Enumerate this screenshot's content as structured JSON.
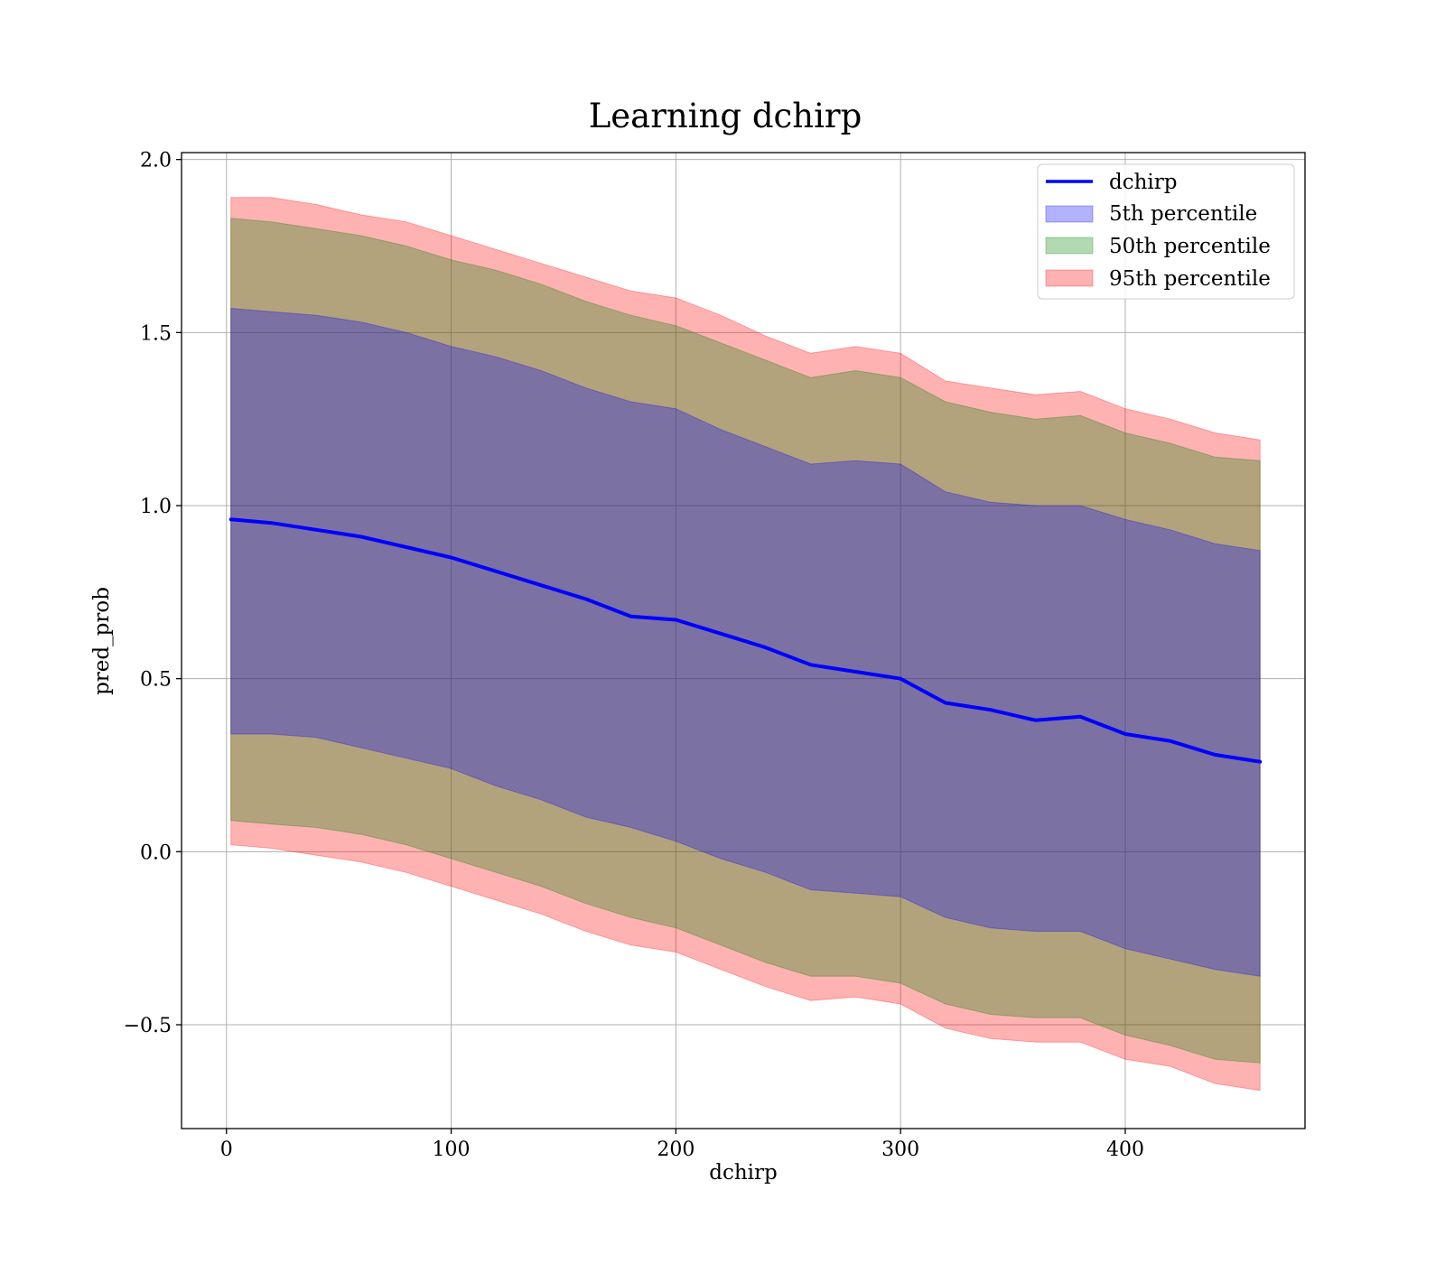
{
  "chart_data": {
    "type": "line",
    "title": "Learning dchirp",
    "xlabel": "dchirp",
    "ylabel": "pred_prob",
    "xlim": [
      -20,
      480
    ],
    "ylim": [
      -0.8,
      2.02
    ],
    "xticks": [
      0,
      100,
      200,
      300,
      400
    ],
    "xtick_labels": [
      "0",
      "100",
      "200",
      "300",
      "400"
    ],
    "yticks": [
      -0.5,
      0.0,
      0.5,
      1.0,
      1.5,
      2.0
    ],
    "ytick_labels": [
      "−0.5",
      "0.0",
      "0.5",
      "1.0",
      "1.5",
      "2.0"
    ],
    "grid": true,
    "legend_position": "top-right",
    "x": [
      2,
      20,
      40,
      60,
      80,
      100,
      120,
      140,
      160,
      180,
      200,
      220,
      240,
      260,
      280,
      300,
      320,
      340,
      360,
      380,
      400,
      420,
      440,
      460
    ],
    "series": [
      {
        "name": "dchirp",
        "kind": "line",
        "color": "#0000ff",
        "values": [
          0.96,
          0.95,
          0.93,
          0.91,
          0.88,
          0.85,
          0.81,
          0.77,
          0.73,
          0.68,
          0.67,
          0.63,
          0.59,
          0.54,
          0.52,
          0.5,
          0.43,
          0.41,
          0.38,
          0.39,
          0.34,
          0.32,
          0.28,
          0.26
        ]
      },
      {
        "name": "5th percentile",
        "kind": "band",
        "color": "#0000ff",
        "upper": [
          1.57,
          1.56,
          1.55,
          1.53,
          1.5,
          1.46,
          1.43,
          1.39,
          1.34,
          1.3,
          1.28,
          1.22,
          1.17,
          1.12,
          1.13,
          1.12,
          1.04,
          1.01,
          1.0,
          1.0,
          0.96,
          0.93,
          0.89,
          0.87
        ],
        "lower": [
          0.34,
          0.34,
          0.33,
          0.3,
          0.27,
          0.24,
          0.19,
          0.15,
          0.1,
          0.07,
          0.03,
          -0.02,
          -0.06,
          -0.11,
          -0.12,
          -0.13,
          -0.19,
          -0.22,
          -0.23,
          -0.23,
          -0.28,
          -0.31,
          -0.34,
          -0.36
        ]
      },
      {
        "name": "50th percentile",
        "kind": "band",
        "color": "#008000",
        "upper": [
          1.83,
          1.82,
          1.8,
          1.78,
          1.75,
          1.71,
          1.68,
          1.64,
          1.59,
          1.55,
          1.52,
          1.47,
          1.42,
          1.37,
          1.39,
          1.37,
          1.3,
          1.27,
          1.25,
          1.26,
          1.21,
          1.18,
          1.14,
          1.13
        ],
        "lower": [
          0.09,
          0.08,
          0.07,
          0.05,
          0.02,
          -0.02,
          -0.06,
          -0.1,
          -0.15,
          -0.19,
          -0.22,
          -0.27,
          -0.32,
          -0.36,
          -0.36,
          -0.38,
          -0.44,
          -0.47,
          -0.48,
          -0.48,
          -0.53,
          -0.56,
          -0.6,
          -0.61
        ]
      },
      {
        "name": "95th percentile",
        "kind": "band",
        "color": "#ff0000",
        "upper": [
          1.89,
          1.89,
          1.87,
          1.84,
          1.82,
          1.78,
          1.74,
          1.7,
          1.66,
          1.62,
          1.6,
          1.55,
          1.49,
          1.44,
          1.46,
          1.44,
          1.36,
          1.34,
          1.32,
          1.33,
          1.28,
          1.25,
          1.21,
          1.19
        ],
        "lower": [
          0.02,
          0.01,
          -0.01,
          -0.03,
          -0.06,
          -0.1,
          -0.14,
          -0.18,
          -0.23,
          -0.27,
          -0.29,
          -0.34,
          -0.39,
          -0.43,
          -0.42,
          -0.44,
          -0.51,
          -0.54,
          -0.55,
          -0.55,
          -0.6,
          -0.62,
          -0.67,
          -0.69
        ]
      }
    ]
  }
}
